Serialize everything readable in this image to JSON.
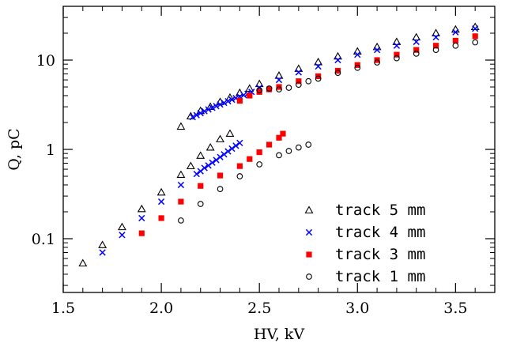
{
  "chart_data": {
    "type": "scatter",
    "xlabel": "HV, kV",
    "ylabel": "Q, pC",
    "xlim": [
      1.5,
      3.7
    ],
    "ylim": [
      0.025,
      40
    ],
    "yscale": "log",
    "x_ticks": [
      "1.5",
      "2.0",
      "2.5",
      "3.0",
      "3.5"
    ],
    "y_ticks": [
      "0.1",
      "1",
      "10"
    ],
    "legend_position": "lower-right",
    "series": [
      {
        "name": "track 5 mm",
        "marker": "open-triangle",
        "color": "#000000",
        "points": [
          [
            1.6,
            0.053
          ],
          [
            1.7,
            0.085
          ],
          [
            1.8,
            0.135
          ],
          [
            1.9,
            0.215
          ],
          [
            2.0,
            0.33
          ],
          [
            2.1,
            0.52
          ],
          [
            2.15,
            0.65
          ],
          [
            2.2,
            0.85
          ],
          [
            2.25,
            1.05
          ],
          [
            2.3,
            1.3
          ],
          [
            2.35,
            1.5
          ],
          [
            2.1,
            1.8
          ],
          [
            2.15,
            2.35
          ],
          [
            2.2,
            2.7
          ],
          [
            2.25,
            3.0
          ],
          [
            2.3,
            3.4
          ],
          [
            2.35,
            3.8
          ],
          [
            2.4,
            4.3
          ],
          [
            2.45,
            4.8
          ],
          [
            2.5,
            5.4
          ],
          [
            2.6,
            6.7
          ],
          [
            2.7,
            8.0
          ],
          [
            2.8,
            9.5
          ],
          [
            2.9,
            11.0
          ],
          [
            3.0,
            12.5
          ],
          [
            3.1,
            14.0
          ],
          [
            3.2,
            16.0
          ],
          [
            3.3,
            18.0
          ],
          [
            3.4,
            20.0
          ],
          [
            3.5,
            22.0
          ],
          [
            3.6,
            23.5
          ]
        ]
      },
      {
        "name": "track 4 mm",
        "marker": "cross",
        "color": "#0000ff",
        "points": [
          [
            1.7,
            0.07
          ],
          [
            1.8,
            0.11
          ],
          [
            1.9,
            0.17
          ],
          [
            2.0,
            0.26
          ],
          [
            2.1,
            0.4
          ],
          [
            2.18,
            0.53
          ],
          [
            2.2,
            0.57
          ],
          [
            2.22,
            0.62
          ],
          [
            2.24,
            0.66
          ],
          [
            2.26,
            0.71
          ],
          [
            2.28,
            0.76
          ],
          [
            2.3,
            0.82
          ],
          [
            2.32,
            0.88
          ],
          [
            2.34,
            0.95
          ],
          [
            2.36,
            1.02
          ],
          [
            2.38,
            1.1
          ],
          [
            2.4,
            1.18
          ],
          [
            2.16,
            2.3
          ],
          [
            2.18,
            2.42
          ],
          [
            2.2,
            2.55
          ],
          [
            2.22,
            2.68
          ],
          [
            2.24,
            2.8
          ],
          [
            2.26,
            2.92
          ],
          [
            2.28,
            3.05
          ],
          [
            2.3,
            3.18
          ],
          [
            2.32,
            3.32
          ],
          [
            2.34,
            3.46
          ],
          [
            2.36,
            3.6
          ],
          [
            2.38,
            3.75
          ],
          [
            2.4,
            3.9
          ],
          [
            2.42,
            4.05
          ],
          [
            2.44,
            4.2
          ],
          [
            2.46,
            4.4
          ],
          [
            2.5,
            4.9
          ],
          [
            2.6,
            6.0
          ],
          [
            2.7,
            7.3
          ],
          [
            2.8,
            8.5
          ],
          [
            2.9,
            10.0
          ],
          [
            3.0,
            11.5
          ],
          [
            3.1,
            13.0
          ],
          [
            3.2,
            14.5
          ],
          [
            3.3,
            16.0
          ],
          [
            3.4,
            18.0
          ],
          [
            3.5,
            20.5
          ],
          [
            3.6,
            22.5
          ]
        ]
      },
      {
        "name": "track 3 mm",
        "marker": "filled-square",
        "color": "#ff0000",
        "points": [
          [
            1.9,
            0.115
          ],
          [
            2.0,
            0.17
          ],
          [
            2.1,
            0.26
          ],
          [
            2.2,
            0.39
          ],
          [
            2.3,
            0.51
          ],
          [
            2.4,
            0.65
          ],
          [
            2.45,
            0.78
          ],
          [
            2.5,
            0.93
          ],
          [
            2.55,
            1.13
          ],
          [
            2.6,
            1.35
          ],
          [
            2.62,
            1.5
          ],
          [
            2.4,
            3.5
          ],
          [
            2.45,
            4.0
          ],
          [
            2.5,
            4.4
          ],
          [
            2.55,
            4.7
          ],
          [
            2.6,
            5.0
          ],
          [
            2.7,
            5.8
          ],
          [
            2.8,
            6.6
          ],
          [
            2.9,
            7.6
          ],
          [
            3.0,
            8.8
          ],
          [
            3.1,
            10.0
          ],
          [
            3.2,
            11.5
          ],
          [
            3.3,
            13.0
          ],
          [
            3.4,
            14.5
          ],
          [
            3.5,
            16.5
          ],
          [
            3.6,
            18.5
          ]
        ]
      },
      {
        "name": "track 1 mm",
        "marker": "open-circle",
        "color": "#000000",
        "points": [
          [
            2.1,
            0.16
          ],
          [
            2.2,
            0.245
          ],
          [
            2.3,
            0.36
          ],
          [
            2.4,
            0.5
          ],
          [
            2.5,
            0.68
          ],
          [
            2.6,
            0.86
          ],
          [
            2.65,
            0.96
          ],
          [
            2.7,
            1.05
          ],
          [
            2.75,
            1.13
          ],
          [
            2.5,
            4.6
          ],
          [
            2.55,
            4.8
          ],
          [
            2.6,
            4.7
          ],
          [
            2.65,
            4.9
          ],
          [
            2.7,
            5.3
          ],
          [
            2.75,
            5.8
          ],
          [
            2.8,
            6.2
          ],
          [
            2.9,
            7.2
          ],
          [
            3.0,
            8.2
          ],
          [
            3.1,
            9.4
          ],
          [
            3.2,
            10.5
          ],
          [
            3.3,
            11.8
          ],
          [
            3.4,
            13.0
          ],
          [
            3.5,
            14.5
          ],
          [
            3.6,
            15.8
          ]
        ]
      }
    ]
  }
}
